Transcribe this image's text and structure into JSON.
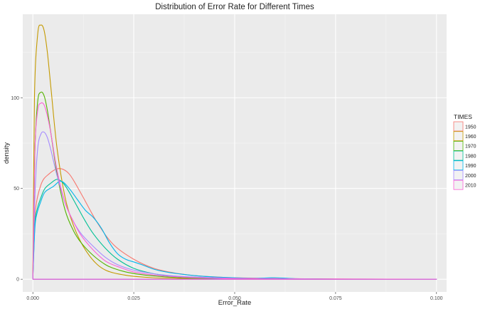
{
  "chart_data": {
    "type": "line",
    "title": "Distribution of Error Rate for Different Times",
    "xlabel": "Error_Rate",
    "ylabel": "density",
    "xlim": [
      -0.0025,
      0.1025
    ],
    "ylim": [
      -7,
      146
    ],
    "x_ticks": [
      0,
      0.025,
      0.05,
      0.075,
      0.1
    ],
    "x_tick_labels": [
      "0.000",
      "0.025",
      "0.050",
      "0.075",
      "0.100"
    ],
    "y_ticks": [
      0,
      50,
      100
    ],
    "y_tick_labels": [
      "0",
      "50",
      "100"
    ],
    "grid": true,
    "legend": {
      "title": "TIMES",
      "position": "right"
    },
    "series": [
      {
        "name": "1950",
        "color": "#F8766D",
        "x": [
          0,
          0.0005,
          0.002,
          0.004,
          0.0065,
          0.009,
          0.012,
          0.016,
          0.02,
          0.025,
          0.03,
          0.035,
          0.04,
          0.045,
          0.05,
          0.06,
          0.07,
          0.08,
          0.09,
          0.1
        ],
        "y": [
          0,
          35,
          52,
          58,
          61,
          58,
          47,
          31,
          19,
          11,
          6,
          3.5,
          2,
          1.3,
          0.8,
          0.4,
          0.2,
          0.1,
          0.05,
          0
        ]
      },
      {
        "name": "1960",
        "color": "#C49A00",
        "x": [
          0,
          0.0004,
          0.0012,
          0.002,
          0.0028,
          0.0036,
          0.0045,
          0.006,
          0.008,
          0.01,
          0.012,
          0.014,
          0.016,
          0.018,
          0.02,
          0.023,
          0.026,
          0.03,
          0.035,
          0.04,
          0.05,
          0.06,
          0.07,
          0.08,
          0.09,
          0.1
        ],
        "y": [
          0,
          100,
          135,
          140,
          137,
          125,
          105,
          72,
          45,
          30,
          20,
          13,
          8,
          5,
          3.5,
          2.2,
          1.4,
          0.8,
          0.5,
          0.3,
          0.15,
          0.08,
          0.05,
          0.03,
          0.01,
          0
        ]
      },
      {
        "name": "1970",
        "color": "#53B400",
        "x": [
          0,
          0.0005,
          0.0012,
          0.002,
          0.0028,
          0.0036,
          0.0045,
          0.006,
          0.008,
          0.01,
          0.012,
          0.015,
          0.018,
          0.02,
          0.023,
          0.026,
          0.03,
          0.035,
          0.04,
          0.05,
          0.06,
          0.07,
          0.08,
          0.09,
          0.1
        ],
        "y": [
          0,
          70,
          98,
          103,
          101,
          93,
          80,
          58,
          38,
          27,
          20,
          13,
          8,
          6,
          4,
          2.8,
          1.8,
          1,
          0.6,
          0.3,
          0.15,
          0.08,
          0.04,
          0.02,
          0
        ]
      },
      {
        "name": "1980",
        "color": "#00C094",
        "x": [
          0,
          0.0005,
          0.001,
          0.002,
          0.003,
          0.0045,
          0.006,
          0.0075,
          0.009,
          0.011,
          0.013,
          0.015,
          0.018,
          0.021,
          0.025,
          0.03,
          0.035,
          0.04,
          0.045,
          0.05,
          0.06,
          0.07,
          0.08,
          0.09,
          0.1
        ],
        "y": [
          0,
          30,
          38,
          45,
          50,
          53,
          55,
          53,
          48,
          40,
          32,
          25,
          17,
          11,
          6,
          3,
          1.6,
          0.9,
          0.5,
          0.3,
          0.15,
          0.08,
          0.04,
          0.02,
          0
        ]
      },
      {
        "name": "1990",
        "color": "#00B6EB",
        "x": [
          0,
          0.0005,
          0.001,
          0.002,
          0.003,
          0.005,
          0.007,
          0.009,
          0.011,
          0.013,
          0.015,
          0.017,
          0.019,
          0.021,
          0.023,
          0.025,
          0.027,
          0.03,
          0.033,
          0.036,
          0.04,
          0.045,
          0.05,
          0.055,
          0.06,
          0.065,
          0.07,
          0.08,
          0.09,
          0.1
        ],
        "y": [
          0,
          28,
          36,
          43,
          48,
          51,
          54,
          50,
          44,
          38,
          34,
          28,
          20,
          14,
          11,
          9.5,
          8,
          5.5,
          4,
          3,
          2,
          1.2,
          0.8,
          0.5,
          0.8,
          0.3,
          0.1,
          0.05,
          0.02,
          0
        ]
      },
      {
        "name": "2000",
        "color": "#A58AFF",
        "x": [
          0,
          0.0005,
          0.0012,
          0.002,
          0.0028,
          0.0036,
          0.0045,
          0.006,
          0.008,
          0.01,
          0.012,
          0.015,
          0.018,
          0.021,
          0.025,
          0.03,
          0.035,
          0.04,
          0.045,
          0.05,
          0.06,
          0.07,
          0.08,
          0.09,
          0.1
        ],
        "y": [
          0,
          45,
          72,
          80,
          81,
          78,
          71,
          57,
          42,
          32,
          25,
          18,
          12,
          8,
          5,
          3,
          1.8,
          1.2,
          0.8,
          0.5,
          0.3,
          0.15,
          0.08,
          0.04,
          0
        ]
      },
      {
        "name": "2010",
        "color": "#FB61D7",
        "x": [
          0,
          0.0005,
          0.0012,
          0.002,
          0.0028,
          0.0036,
          0.0045,
          0.006,
          0.008,
          0.01,
          0.012,
          0.015,
          0.018,
          0.021,
          0.025,
          0.03,
          0.035,
          0.04,
          0.045,
          0.05,
          0.06,
          0.07,
          0.08,
          0.09,
          0.1
        ],
        "y": [
          0,
          70,
          93,
          97,
          96,
          90,
          80,
          60,
          42,
          32,
          24,
          16,
          10,
          7,
          4,
          2.3,
          1.4,
          0.9,
          0.6,
          0.4,
          0.2,
          0.1,
          0.05,
          0.02,
          0
        ]
      }
    ]
  }
}
